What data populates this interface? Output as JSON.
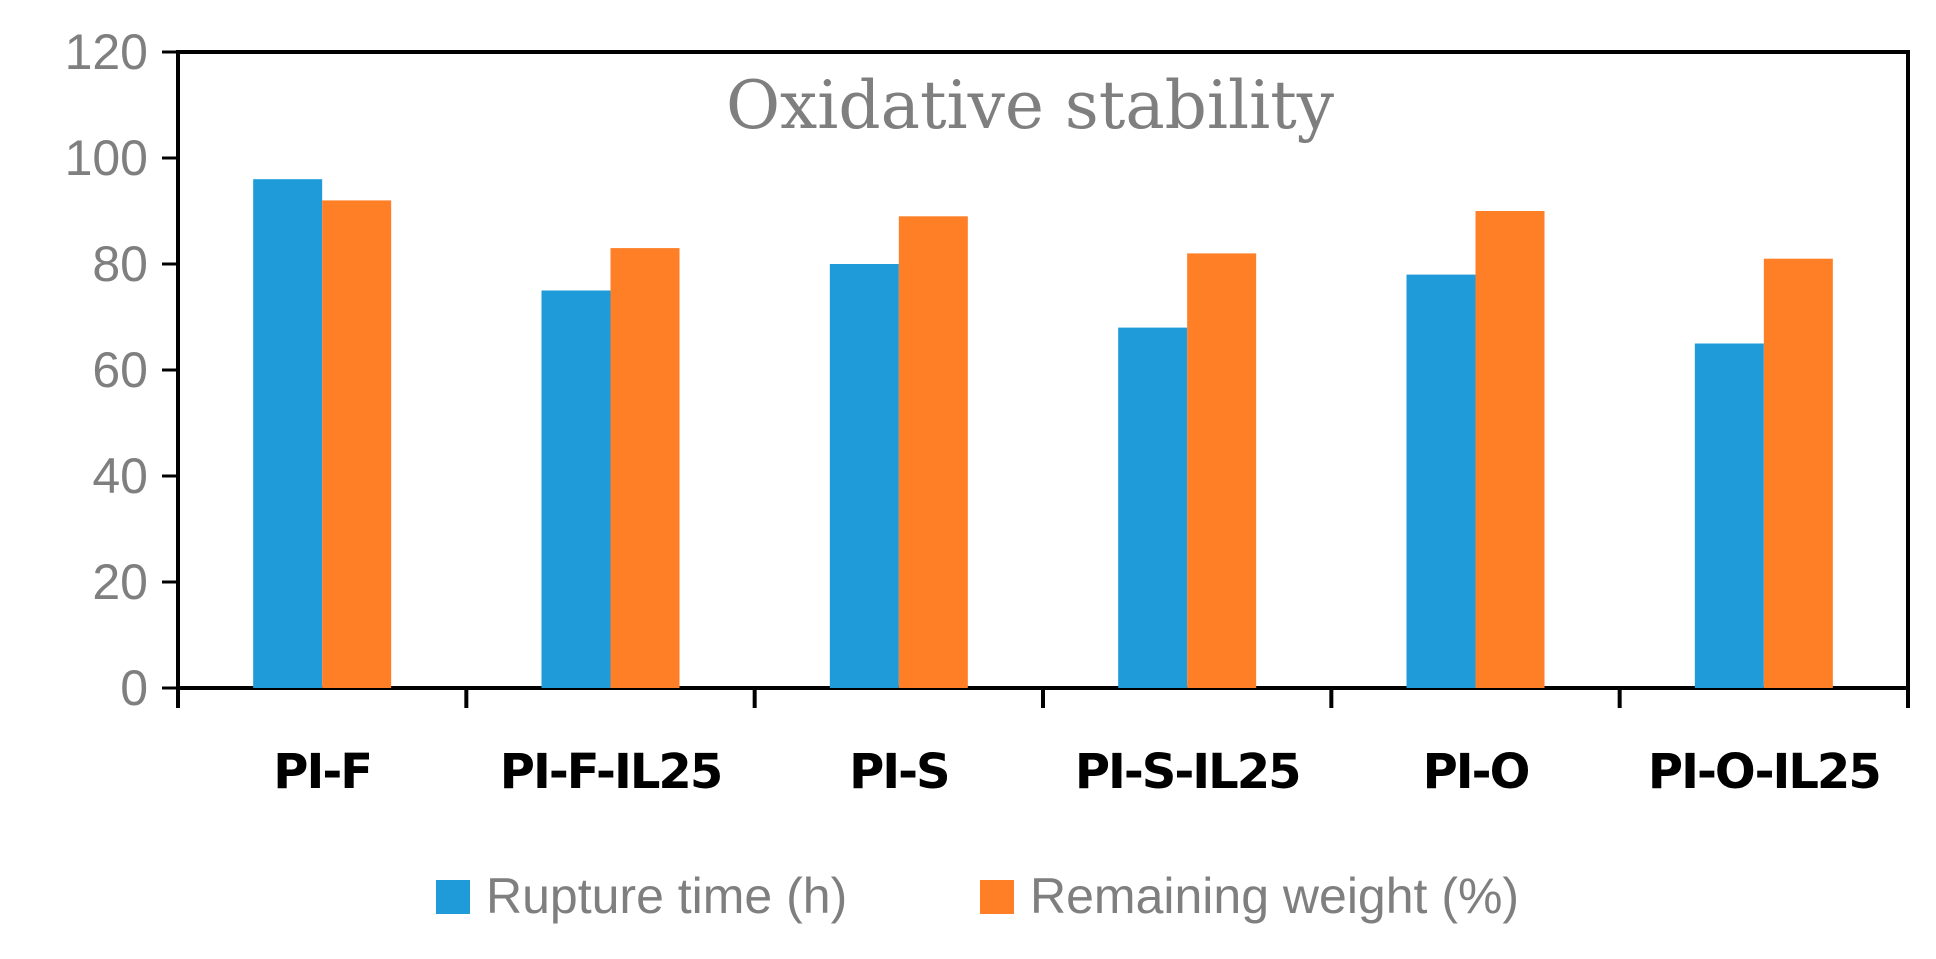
{
  "chart_data": {
    "type": "bar",
    "title": "Oxidative stability",
    "xlabel": "",
    "ylabel": "",
    "ylim": [
      0,
      120
    ],
    "yticks": [
      "0",
      "20",
      "40",
      "60",
      "80",
      "100",
      "120"
    ],
    "categories": [
      "PI-F",
      "PI-F-IL25",
      "PI-S",
      "PI-S-IL25",
      "PI-O",
      "PI-O-IL25"
    ],
    "series": [
      {
        "name": "Rupture time (h)",
        "color": "#1f9bd9",
        "values": [
          96,
          75,
          80,
          68,
          78,
          65
        ]
      },
      {
        "name": "Remaining weight (%)",
        "color": "#ff7f27",
        "values": [
          92,
          83,
          89,
          82,
          90,
          81
        ]
      }
    ],
    "grid": false,
    "legend_position": "bottom"
  }
}
